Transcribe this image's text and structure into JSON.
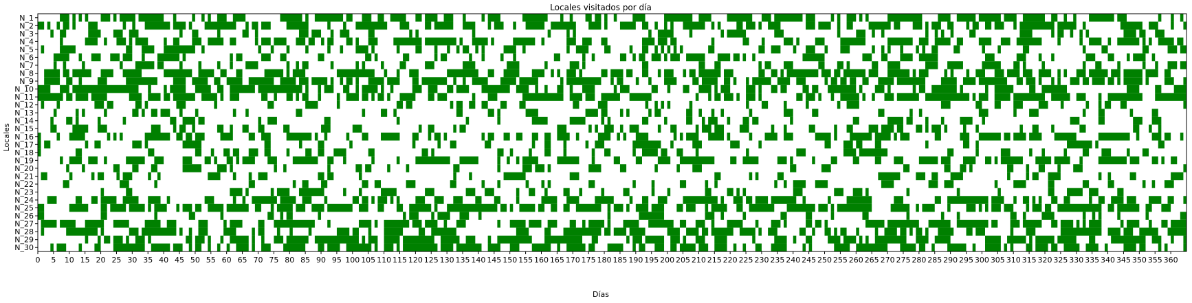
{
  "chart_data": {
    "type": "heatmap",
    "title": "Locales visitados por día",
    "xlabel": "Días",
    "ylabel": "Locales",
    "rows": [
      "N_1",
      "N_2",
      "N_3",
      "N_4",
      "N_5",
      "N_6",
      "N_7",
      "N_8",
      "N_9",
      "N_10",
      "N_11",
      "N_12",
      "N_13",
      "N_14",
      "N_15",
      "N_16",
      "N_17",
      "N_18",
      "N_19",
      "N_20",
      "N_21",
      "N_22",
      "N_23",
      "N_24",
      "N_25",
      "N_26",
      "N_27",
      "N_28",
      "N_29",
      "N_30"
    ],
    "x_ticks": [
      "0",
      "5",
      "10",
      "15",
      "20",
      "25",
      "30",
      "35",
      "40",
      "45",
      "50",
      "55",
      "60",
      "65",
      "70",
      "75",
      "80",
      "85",
      "90",
      "95",
      "100",
      "105",
      "110",
      "115",
      "120",
      "125",
      "130",
      "135",
      "140",
      "145",
      "150",
      "155",
      "160",
      "165",
      "170",
      "175",
      "180",
      "185",
      "190",
      "195",
      "200",
      "205",
      "210",
      "215",
      "220",
      "225",
      "230",
      "235",
      "240",
      "245",
      "250",
      "255",
      "260",
      "265",
      "270",
      "275",
      "280",
      "285",
      "290",
      "295",
      "300",
      "305",
      "310",
      "315",
      "320",
      "325",
      "330",
      "335",
      "340",
      "345",
      "350",
      "355",
      "360"
    ],
    "xlim": [
      0,
      365
    ],
    "n_days": 365,
    "values": [
      0,
      1
    ],
    "colors": {
      "visited": "#008000",
      "not_visited": "#ffffff"
    },
    "row_visit_rates": [
      0.55,
      0.55,
      0.25,
      0.5,
      0.3,
      0.3,
      0.2,
      0.55,
      0.55,
      0.55,
      0.55,
      0.2,
      0.25,
      0.2,
      0.25,
      0.5,
      0.2,
      0.2,
      0.5,
      0.2,
      0.2,
      0.2,
      0.2,
      0.5,
      0.55,
      0.25,
      0.5,
      0.55,
      0.55,
      0.55
    ],
    "legend": "none",
    "grid": false
  }
}
